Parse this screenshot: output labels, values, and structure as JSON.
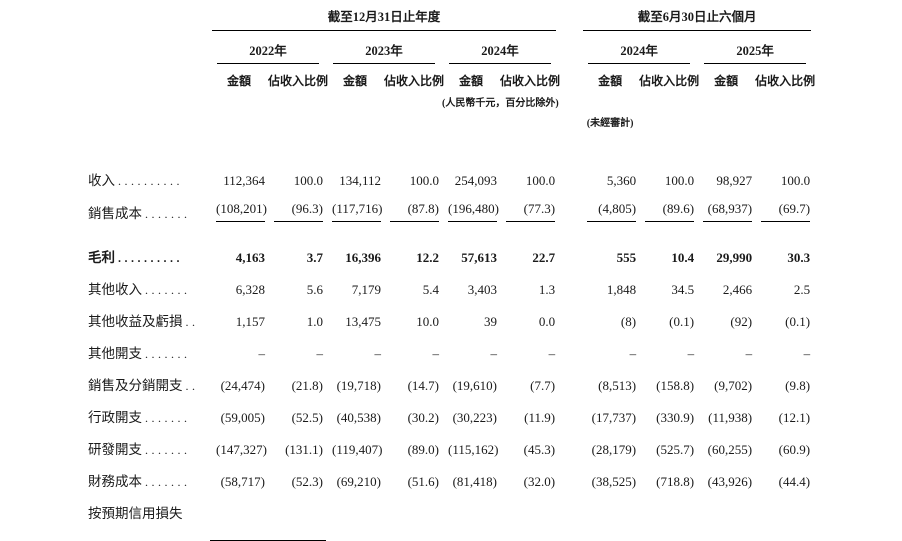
{
  "page": {
    "background": "#ffffff",
    "text_color": "#1a1a1a"
  },
  "table": {
    "period_groups": [
      {
        "label": "截至12月31日止年度"
      },
      {
        "label": "截至6月30日止六個月"
      }
    ],
    "year_headers": [
      "2022年",
      "2023年",
      "2024年",
      "2024年",
      "2025年"
    ],
    "column_subheaders": {
      "amount": "金額",
      "ratio": "佔收入比例"
    },
    "notes": {
      "units": "(人民幣千元，百分比除外)",
      "unaudited": "(未經審計)"
    },
    "rows": [
      {
        "label": "收入",
        "dots": "..........",
        "values": [
          "112,364",
          "100.0",
          "134,112",
          "100.0",
          "254,093",
          "100.0",
          "5,360",
          "100.0",
          "98,927",
          "100.0"
        ]
      },
      {
        "label": "銷售成本",
        "dots": ".......",
        "rule_below": true,
        "values": [
          "(108,201)",
          "(96.3)",
          "(117,716)",
          "(87.8)",
          "(196,480)",
          "(77.3)",
          "(4,805)",
          "(89.6)",
          "(68,937)",
          "(69.7)"
        ]
      },
      {
        "label": "毛利",
        "dots": "..........",
        "bold": true,
        "spacer_before": true,
        "values": [
          "4,163",
          "3.7",
          "16,396",
          "12.2",
          "57,613",
          "22.7",
          "555",
          "10.4",
          "29,990",
          "30.3"
        ]
      },
      {
        "label": "其他收入",
        "dots": ".......",
        "values": [
          "6,328",
          "5.6",
          "7,179",
          "5.4",
          "3,403",
          "1.3",
          "1,848",
          "34.5",
          "2,466",
          "2.5"
        ]
      },
      {
        "label": "其他收益及虧損",
        "dots": "..",
        "values": [
          "1,157",
          "1.0",
          "13,475",
          "10.0",
          "39",
          "0.0",
          "(8)",
          "(0.1)",
          "(92)",
          "(0.1)"
        ]
      },
      {
        "label": "其他開支",
        "dots": ".......",
        "values": [
          "–",
          "–",
          "–",
          "–",
          "–",
          "–",
          "–",
          "–",
          "–",
          "–"
        ]
      },
      {
        "label": "銷售及分銷開支",
        "dots": "..",
        "values": [
          "(24,474)",
          "(21.8)",
          "(19,718)",
          "(14.7)",
          "(19,610)",
          "(7.7)",
          "(8,513)",
          "(158.8)",
          "(9,702)",
          "(9.8)"
        ]
      },
      {
        "label": "行政開支",
        "dots": ".......",
        "values": [
          "(59,005)",
          "(52.5)",
          "(40,538)",
          "(30.2)",
          "(30,223)",
          "(11.9)",
          "(17,737)",
          "(330.9)",
          "(11,938)",
          "(12.1)"
        ]
      },
      {
        "label": "研發開支",
        "dots": ".......",
        "values": [
          "(147,327)",
          "(131.1)",
          "(119,407)",
          "(89.0)",
          "(115,162)",
          "(45.3)",
          "(28,179)",
          "(525.7)",
          "(60,255)",
          "(60.9)"
        ]
      },
      {
        "label": "財務成本",
        "dots": ".......",
        "values": [
          "(58,717)",
          "(52.3)",
          "(69,210)",
          "(51.6)",
          "(81,418)",
          "(32.0)",
          "(38,525)",
          "(718.8)",
          "(43,926)",
          "(44.4)"
        ]
      },
      {
        "label": "按預期信用損失",
        "dots": "",
        "values": [
          "",
          "",
          "",
          "",
          "",
          "",
          "",
          "",
          "",
          ""
        ]
      }
    ]
  }
}
